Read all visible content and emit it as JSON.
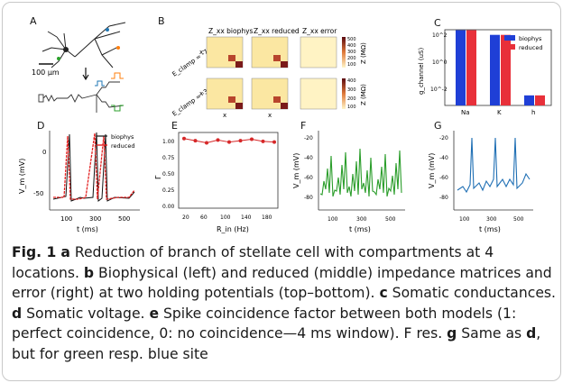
{
  "panels": {
    "A": {
      "label": "A",
      "scalebar": "100 μm"
    },
    "B": {
      "label": "B",
      "col_titles": [
        "Z_xx biophys",
        "Z_xx reduced",
        "Z_xx error"
      ],
      "row_labels": [
        "E_clamp = -75 mV",
        "E_clamp = -35 mV"
      ],
      "axis_x": "x",
      "axis_y": "x",
      "cbar_label": "Z (MΩ)",
      "cbar_ticks": [
        "500",
        "400",
        "300",
        "200",
        "100",
        "0"
      ]
    },
    "C": {
      "label": "C",
      "ylabel": "g_channel (uS)",
      "legend": [
        "biophys",
        "reduced"
      ],
      "categories": [
        "Na",
        "K",
        "h"
      ],
      "yticks": [
        "10^2",
        "10^0",
        "10^-2"
      ]
    },
    "D": {
      "label": "D",
      "ylabel": "V_m (mV)",
      "xlabel": "t (ms)",
      "legend": [
        "biophys",
        "reduced"
      ],
      "yticks": [
        "0",
        "-50"
      ],
      "xticks": [
        "100",
        "300",
        "500"
      ]
    },
    "E": {
      "label": "E",
      "ylabel": "Γ",
      "xlabel": "R_in (Hz)",
      "yticks": [
        "1.00",
        "0.75",
        "0.50",
        "0.25",
        "0.00"
      ],
      "xticks": [
        "20",
        "60",
        "100",
        "140",
        "180"
      ]
    },
    "F": {
      "label": "F",
      "ylabel": "V_m (mV)",
      "xlabel": "t (ms)",
      "yticks": [
        "-20",
        "-40",
        "-60",
        "-80"
      ],
      "xticks": [
        "100",
        "300",
        "500"
      ]
    },
    "G": {
      "label": "G",
      "ylabel": "V_m (mV)",
      "xlabel": "t (ms)",
      "yticks": [
        "-20",
        "-40",
        "-60",
        "-80"
      ],
      "xticks": [
        "100",
        "300",
        "500"
      ]
    }
  },
  "caption": {
    "fig": "Fig. 1",
    "a_letter": "a",
    "a_text": " Reduction of branch of stellate cell with compartments at 4 locations. ",
    "b_letter": "b",
    "b_text": " Biophysical (left) and reduced (middle) impedance matrices and error (right) at two holding potentials (top–bottom). ",
    "c_letter": "c",
    "c_text": " Somatic conductances. ",
    "d_letter": "d",
    "d_text": " Somatic voltage. ",
    "e_letter": "e",
    "e_text": " Spike coincidence factor between both models (1: perfect coincidence, 0: no coincidence—4 ms window). F res. ",
    "g_letter": "g",
    "g_text": " Same as ",
    "g_ref": "d",
    "g_tail": ", but for green resp. blue site"
  },
  "chart_data": [
    {
      "type": "bar",
      "title": "C",
      "categories": [
        "Na",
        "K",
        "h"
      ],
      "series": [
        {
          "name": "biophys",
          "values": [
            200,
            90,
            0.003
          ]
        },
        {
          "name": "reduced",
          "values": [
            200,
            90,
            0.003
          ]
        }
      ],
      "ylabel": "g_channel (uS)",
      "log": true,
      "colors": {
        "biophys": "#1f3fd6",
        "reduced": "#e8303a"
      }
    },
    {
      "type": "line",
      "title": "E",
      "x": [
        20,
        40,
        60,
        80,
        100,
        120,
        140,
        160,
        180
      ],
      "y": [
        0.99,
        0.96,
        0.93,
        0.97,
        0.94,
        0.96,
        0.98,
        0.95,
        0.94
      ],
      "xlabel": "R_in (Hz)",
      "ylabel": "Γ",
      "ylim": [
        0,
        1
      ]
    }
  ]
}
